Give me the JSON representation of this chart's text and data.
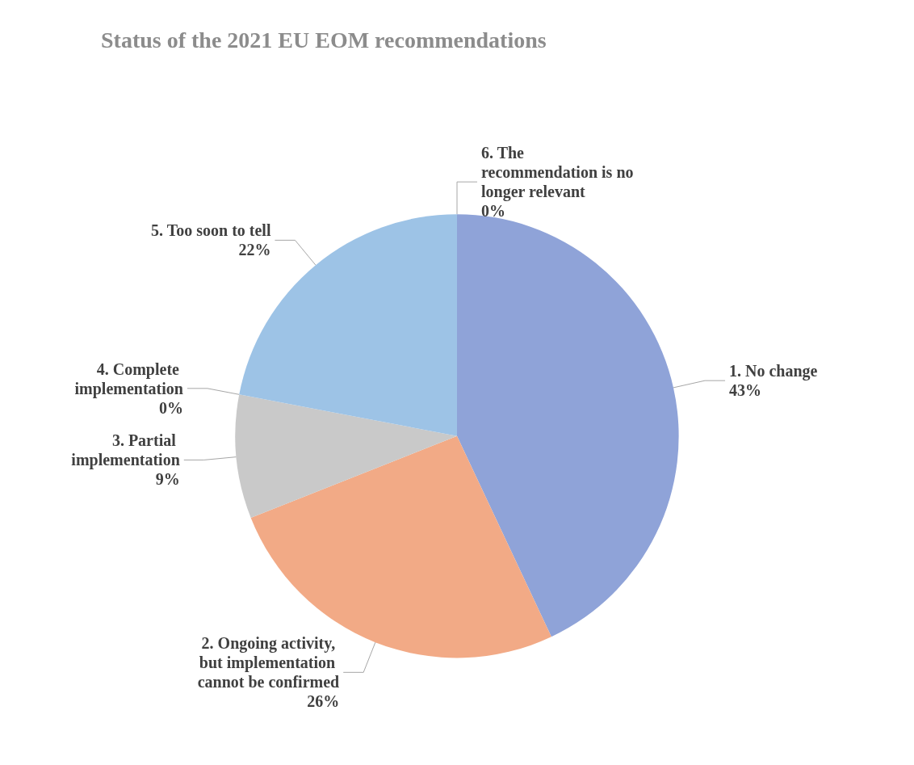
{
  "chart_data": {
    "type": "pie",
    "title": "Status of the 2021 EU EOM recommendations",
    "categories": [
      "1. No change",
      "2. Ongoing activity, but implementation cannot be confirmed",
      "3. Partial implementation",
      "4. Complete implementation",
      "5. Too soon to tell",
      "6. The recommendation is no longer relevant"
    ],
    "values": [
      43,
      26,
      9,
      0,
      22,
      0
    ],
    "value_labels": [
      "43%",
      "26%",
      "9%",
      "0%",
      "22%",
      "0%"
    ],
    "colors": [
      "#8fa3d8",
      "#f2aa86",
      "#c9c9c9",
      "#ffc000",
      "#9dc3e6",
      "#70ad47"
    ],
    "legend": false
  }
}
